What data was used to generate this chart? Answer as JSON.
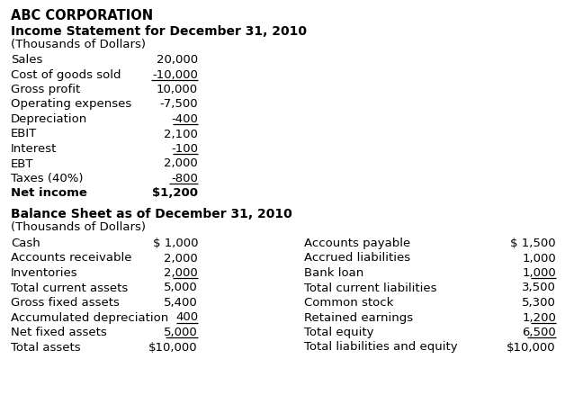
{
  "title": "ABC CORPORATION",
  "income_title1": "Income Statement for December 31, 2010",
  "income_title2": "(Thousands of Dollars)",
  "balance_title1": "Balance Sheet as of December 31, 2010",
  "balance_title2": "(Thousands of Dollars)",
  "income_items": [
    [
      "Sales",
      "20,000",
      false
    ],
    [
      "Cost of goods sold",
      "-10,000",
      true
    ],
    [
      "Gross profit",
      "10,000",
      false
    ],
    [
      "Operating expenses",
      "-7,500",
      false
    ],
    [
      "Depreciation",
      "-400",
      true
    ],
    [
      "EBIT",
      "2,100",
      false
    ],
    [
      "Interest",
      "-100",
      true
    ],
    [
      "EBT",
      "2,000",
      false
    ],
    [
      "Taxes (40%)",
      "-800",
      true
    ],
    [
      "Net income",
      "$1,200",
      false
    ]
  ],
  "balance_left": [
    [
      "Cash",
      "$ 1,000",
      false
    ],
    [
      "Accounts receivable",
      "2,000",
      false
    ],
    [
      "Inventories",
      "2,000",
      true
    ],
    [
      "Total current assets",
      "5,000",
      false
    ],
    [
      "Gross fixed assets",
      "5,400",
      false
    ],
    [
      "Accumulated depreciation",
      "400",
      true
    ],
    [
      "Net fixed assets",
      "5,000",
      true
    ],
    [
      "Total assets",
      "$10,000",
      false
    ]
  ],
  "balance_right": [
    [
      "Accounts payable",
      "$ 1,500",
      false
    ],
    [
      "Accrued liabilities",
      "1,000",
      false
    ],
    [
      "Bank loan",
      "1,000",
      true
    ],
    [
      "Total current liabilities",
      "3,500",
      false
    ],
    [
      "Common stock",
      "5,300",
      false
    ],
    [
      "Retained earnings",
      "1,200",
      true
    ],
    [
      "Total equity",
      "6,500",
      true
    ],
    [
      "Total liabilities and equity",
      "$10,000",
      false
    ]
  ],
  "bg_color": "#ffffff",
  "text_color": "#000000",
  "fig_width": 6.48,
  "fig_height": 4.6,
  "dpi": 100
}
